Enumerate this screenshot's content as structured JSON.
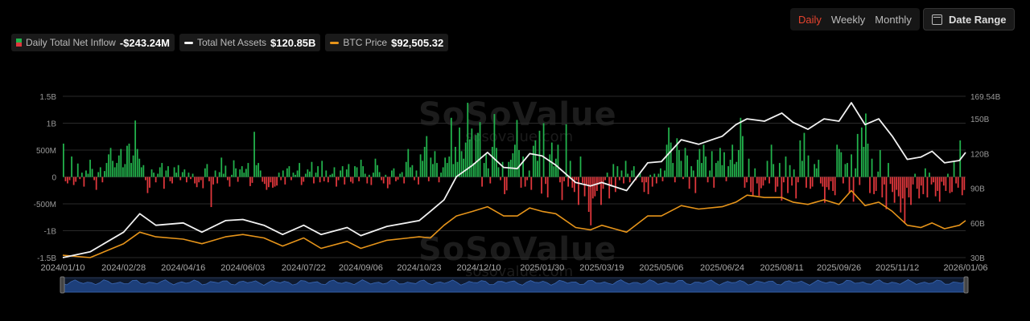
{
  "controls": {
    "period_options": [
      "Daily",
      "Weekly",
      "Monthly"
    ],
    "active_period": "Daily",
    "date_range_label": "Date Range"
  },
  "legend": {
    "inflow_label": "Daily Total Net Inflow",
    "inflow_value": "-$243.24M",
    "assets_label": "Total Net Assets",
    "assets_value": "$120.85B",
    "btc_label": "BTC Price",
    "btc_value": "$92,505.32"
  },
  "watermark": {
    "brand": "SoSoValue",
    "site": "sosovalue.com"
  },
  "colors": {
    "inflow_positive": "#22b24c",
    "inflow_negative": "#e0373c",
    "net_assets_line": "#f2f2f2",
    "btc_price_line": "#e6941a",
    "navigator_fill": "#1d3f7a"
  },
  "chart_data": {
    "type": "bar+line",
    "x_ticks": [
      "2024/01/10",
      "2024/02/28",
      "2024/04/16",
      "2024/06/03",
      "2024/07/22",
      "2024/09/06",
      "2024/10/23",
      "2024/12/10",
      "2025/01/30",
      "2025/03/19",
      "2025/05/06",
      "2025/06/24",
      "2025/08/11",
      "2025/09/26",
      "2025/11/12",
      "2026/01/06"
    ],
    "left_axis": {
      "ticks": [
        "1.5B",
        "1B",
        "500M",
        "0",
        "-500M",
        "-1B",
        "-1.5B"
      ],
      "range": [
        -1500,
        1500
      ],
      "unit": "M"
    },
    "right_axis": {
      "ticks": [
        "169.54B",
        "150B",
        "120B",
        "90B",
        "60B",
        "30B"
      ],
      "range": [
        30,
        169.54
      ],
      "unit": "B"
    },
    "series": [
      {
        "name": "Daily Total Net Inflow",
        "type": "bar",
        "axis": "left",
        "unit": "M",
        "values": [
          620,
          -80,
          -120,
          -60,
          380,
          -150,
          -90,
          250,
          -40,
          80,
          -180,
          120,
          60,
          320,
          150,
          -60,
          -240,
          90,
          180,
          -100,
          110,
          260,
          420,
          540,
          300,
          180,
          260,
          400,
          520,
          180,
          240,
          580,
          620,
          260,
          400,
          1050,
          520,
          340,
          180,
          220,
          -60,
          -300,
          -200,
          140,
          80,
          -100,
          60,
          180,
          260,
          -220,
          120,
          200,
          -80,
          -120,
          180,
          80,
          220,
          -60,
          90,
          140,
          -100,
          80,
          -40,
          60,
          -120,
          -190,
          -100,
          -60,
          -210,
          160,
          240,
          -80,
          -560,
          -140,
          120,
          -120,
          90,
          360,
          60,
          210,
          -60,
          -180,
          40,
          310,
          160,
          -90,
          140,
          200,
          80,
          150,
          260,
          -170,
          -110,
          840,
          220,
          260,
          120,
          -90,
          -130,
          -240,
          -190,
          -100,
          -200,
          -180,
          -160,
          80,
          -60,
          120,
          -140,
          160,
          200,
          -60,
          80,
          40,
          120,
          260,
          -150,
          -90,
          60,
          140,
          100,
          280,
          -120,
          80,
          200,
          -100,
          300,
          -80,
          120,
          -100,
          40,
          60,
          180,
          -180,
          -60,
          120,
          200,
          -140,
          140,
          240,
          -90,
          -120,
          200,
          180,
          -80,
          320,
          200,
          60,
          -120,
          40,
          -150,
          80,
          340,
          220,
          90,
          -60,
          -120,
          40,
          -210,
          -140,
          120,
          160,
          -80,
          -50,
          60,
          90,
          -120,
          280,
          520,
          180,
          220,
          -60,
          120,
          -140,
          420,
          300,
          560,
          760,
          -80,
          360,
          240,
          480,
          260,
          -100,
          80,
          180,
          360,
          260,
          380,
          1100,
          240,
          560,
          280,
          920,
          480,
          340,
          640,
          1380,
          700,
          900,
          260,
          780,
          820,
          1020,
          -180,
          260,
          420,
          160,
          -120,
          560,
          1170,
          540,
          180,
          -60,
          280,
          -320,
          -250,
          280,
          320,
          440,
          600,
          1060,
          500,
          -200,
          380,
          -180,
          -60,
          120,
          -240,
          580,
          680,
          300,
          860,
          -310,
          1000,
          -130,
          -380,
          420,
          640,
          200,
          340,
          600,
          -100,
          -430,
          -80,
          980,
          -180,
          300,
          -200,
          -280,
          -60,
          -520,
          380,
          -110,
          -360,
          -140,
          -650,
          -900,
          -400,
          -360,
          -260,
          -140,
          -520,
          -220,
          -60,
          80,
          -400,
          -180,
          240,
          -280,
          200,
          -60,
          120,
          -120,
          300,
          60,
          -100,
          120,
          200,
          -60,
          20,
          80,
          -100,
          -280,
          -100,
          -320,
          40,
          -180,
          60,
          -120,
          60,
          160,
          -80,
          120,
          600,
          920,
          640,
          260,
          -100,
          720,
          500,
          300,
          -40,
          540,
          400,
          -220,
          200,
          120,
          -300,
          320,
          520,
          260,
          600,
          380,
          -100,
          120,
          480,
          -200,
          260,
          300,
          540,
          220,
          460,
          -80,
          200,
          320,
          600,
          240,
          280,
          500,
          1100,
          760,
          -200,
          -100,
          340,
          -280,
          -360,
          160,
          -120,
          -350,
          -210,
          -160,
          -60,
          300,
          -120,
          600,
          240,
          -280,
          -180,
          260,
          -440,
          -100,
          380,
          -300,
          220,
          -160,
          140,
          -400,
          -100,
          680,
          300,
          820,
          -200,
          400,
          -220,
          -180,
          240,
          160,
          320,
          -120,
          -180,
          -480,
          -190,
          -240,
          -80,
          -260,
          -340,
          600,
          520,
          460,
          -120,
          240,
          260,
          -300,
          420,
          -460,
          160,
          800,
          -150,
          920,
          560,
          1180,
          620,
          -300,
          340,
          -320,
          -260,
          100,
          500,
          -380,
          -140,
          -600,
          260,
          -130,
          -280,
          -480,
          -240,
          -360,
          -660,
          -400,
          -860,
          -200,
          -380,
          -520,
          -140,
          60,
          -220,
          -400,
          -160,
          -320,
          160,
          -380,
          80,
          -140,
          -100,
          -360,
          -260,
          -460,
          -90,
          -160,
          -260,
          60,
          -300,
          -280,
          300,
          -120,
          -200,
          680,
          -340,
          -243
        ]
      },
      {
        "name": "Total Net Assets",
        "type": "line",
        "axis": "right",
        "unit": "B",
        "points": [
          [
            "2024/01/10",
            30
          ],
          [
            "2024/02/01",
            35
          ],
          [
            "2024/02/28",
            52
          ],
          [
            "2024/03/12",
            68
          ],
          [
            "2024/03/25",
            58
          ],
          [
            "2024/04/16",
            60
          ],
          [
            "2024/05/01",
            52
          ],
          [
            "2024/05/20",
            62
          ],
          [
            "2024/06/03",
            63
          ],
          [
            "2024/06/20",
            58
          ],
          [
            "2024/07/05",
            50
          ],
          [
            "2024/07/22",
            58
          ],
          [
            "2024/08/05",
            50
          ],
          [
            "2024/08/26",
            56
          ],
          [
            "2024/09/06",
            49
          ],
          [
            "2024/09/27",
            57
          ],
          [
            "2024/10/23",
            62
          ],
          [
            "2024/11/01",
            70
          ],
          [
            "2024/11/12",
            80
          ],
          [
            "2024/11/22",
            100
          ],
          [
            "2024/12/05",
            110
          ],
          [
            "2024/12/17",
            121
          ],
          [
            "2024/12/30",
            108
          ],
          [
            "2025/01/10",
            107
          ],
          [
            "2025/01/20",
            120
          ],
          [
            "2025/01/30",
            118
          ],
          [
            "2025/02/10",
            110
          ],
          [
            "2025/02/26",
            95
          ],
          [
            "2025/03/10",
            92
          ],
          [
            "2025/03/19",
            95
          ],
          [
            "2025/04/08",
            88
          ],
          [
            "2025/04/25",
            112
          ],
          [
            "2025/05/06",
            113
          ],
          [
            "2025/05/22",
            132
          ],
          [
            "2025/06/05",
            128
          ],
          [
            "2025/06/24",
            135
          ],
          [
            "2025/07/05",
            145
          ],
          [
            "2025/07/14",
            150
          ],
          [
            "2025/07/28",
            148
          ],
          [
            "2025/08/11",
            155
          ],
          [
            "2025/08/20",
            147
          ],
          [
            "2025/09/01",
            141
          ],
          [
            "2025/09/14",
            150
          ],
          [
            "2025/09/26",
            148
          ],
          [
            "2025/10/06",
            164
          ],
          [
            "2025/10/17",
            145
          ],
          [
            "2025/10/28",
            150
          ],
          [
            "2025/11/08",
            135
          ],
          [
            "2025/11/20",
            115
          ],
          [
            "2025/12/01",
            117
          ],
          [
            "2025/12/10",
            122
          ],
          [
            "2025/12/20",
            112
          ],
          [
            "2026/01/01",
            114
          ],
          [
            "2026/01/06",
            121
          ]
        ]
      },
      {
        "name": "BTC Price",
        "type": "line",
        "axis": "right",
        "points": [
          [
            "2024/01/10",
            32
          ],
          [
            "2024/02/01",
            30
          ],
          [
            "2024/02/28",
            42
          ],
          [
            "2024/03/12",
            52
          ],
          [
            "2024/03/25",
            48
          ],
          [
            "2024/04/16",
            46
          ],
          [
            "2024/05/01",
            42
          ],
          [
            "2024/05/20",
            48
          ],
          [
            "2024/06/03",
            50
          ],
          [
            "2024/06/20",
            47
          ],
          [
            "2024/07/05",
            40
          ],
          [
            "2024/07/22",
            47
          ],
          [
            "2024/08/05",
            38
          ],
          [
            "2024/08/26",
            44
          ],
          [
            "2024/09/06",
            38
          ],
          [
            "2024/09/27",
            45
          ],
          [
            "2024/10/23",
            48
          ],
          [
            "2024/11/01",
            47
          ],
          [
            "2024/11/12",
            58
          ],
          [
            "2024/11/22",
            66
          ],
          [
            "2024/12/05",
            70
          ],
          [
            "2024/12/17",
            74
          ],
          [
            "2024/12/30",
            66
          ],
          [
            "2025/01/10",
            66
          ],
          [
            "2025/01/20",
            73
          ],
          [
            "2025/01/30",
            70
          ],
          [
            "2025/02/10",
            68
          ],
          [
            "2025/02/26",
            56
          ],
          [
            "2025/03/10",
            54
          ],
          [
            "2025/03/19",
            58
          ],
          [
            "2025/04/08",
            52
          ],
          [
            "2025/04/25",
            66
          ],
          [
            "2025/05/06",
            66
          ],
          [
            "2025/05/22",
            75
          ],
          [
            "2025/06/05",
            72
          ],
          [
            "2025/06/24",
            74
          ],
          [
            "2025/07/05",
            78
          ],
          [
            "2025/07/14",
            84
          ],
          [
            "2025/07/28",
            82
          ],
          [
            "2025/08/11",
            82
          ],
          [
            "2025/08/20",
            78
          ],
          [
            "2025/09/01",
            76
          ],
          [
            "2025/09/14",
            80
          ],
          [
            "2025/09/26",
            76
          ],
          [
            "2025/10/06",
            88
          ],
          [
            "2025/10/17",
            75
          ],
          [
            "2025/10/28",
            78
          ],
          [
            "2025/11/08",
            70
          ],
          [
            "2025/11/20",
            58
          ],
          [
            "2025/12/01",
            56
          ],
          [
            "2025/12/10",
            60
          ],
          [
            "2025/12/20",
            55
          ],
          [
            "2026/01/01",
            58
          ],
          [
            "2026/01/06",
            62
          ]
        ]
      }
    ]
  }
}
